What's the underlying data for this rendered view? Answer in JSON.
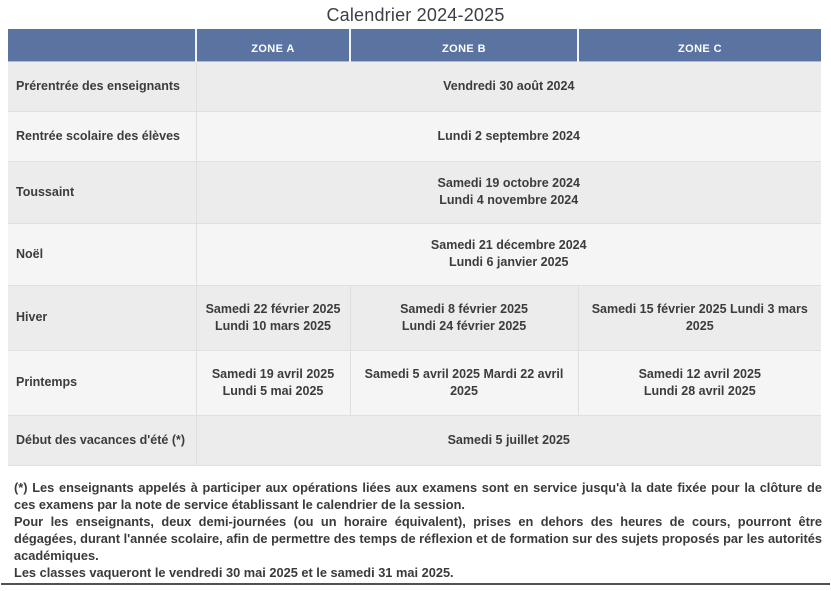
{
  "title": "Calendrier 2024-2025",
  "colors": {
    "header_bg": "#5a73a1",
    "row_dark": "#ececec",
    "row_light": "#f5f5f5",
    "divider": "#515151"
  },
  "table": {
    "header": {
      "zone_a": "ZONE A",
      "zone_b": "ZONE B",
      "zone_c": "ZONE C"
    },
    "rows": [
      {
        "label": "Prérentrée des enseignants",
        "cells": [
          {
            "span": "all-zones",
            "lines": [
              "Vendredi 30 août 2024"
            ]
          }
        ]
      },
      {
        "label": "Rentrée scolaire des élèves",
        "cells": [
          {
            "span": "all-zones",
            "lines": [
              "Lundi 2 septembre 2024"
            ]
          }
        ]
      },
      {
        "label": "Toussaint",
        "cells": [
          {
            "span": "all-zones",
            "lines": [
              "Samedi 19 octobre 2024",
              "Lundi 4 novembre 2024"
            ]
          }
        ]
      },
      {
        "label": "Noël",
        "cells": [
          {
            "span": "all-zones",
            "lines": [
              "Samedi 21 décembre 2024",
              "Lundi 6 janvier 2025"
            ]
          }
        ]
      },
      {
        "label": "Hiver",
        "cells": [
          {
            "span": "zone-a",
            "lines": [
              "Samedi 22 février 2025",
              "Lundi 10 mars 2025"
            ]
          },
          {
            "span": "zone-b",
            "lines": [
              "Samedi 8 février 2025",
              "Lundi 24 février 2025"
            ]
          },
          {
            "span": "zone-c",
            "lines": [
              "Samedi 15 février 2025 Lundi 3 mars 2025"
            ]
          }
        ]
      },
      {
        "label": "Printemps",
        "cells": [
          {
            "span": "zone-a",
            "lines": [
              "Samedi 19 avril 2025",
              "Lundi 5 mai 2025"
            ]
          },
          {
            "span": "zone-b",
            "lines": [
              "Samedi 5 avril 2025 Mardi 22 avril 2025"
            ]
          },
          {
            "span": "zone-c",
            "lines": [
              "Samedi 12 avril 2025",
              "Lundi 28 avril 2025"
            ]
          }
        ]
      },
      {
        "label": "Début des vacances d'été (*)",
        "cells": [
          {
            "span": "all-zones",
            "lines": [
              "Samedi 5 juillet 2025"
            ]
          }
        ]
      }
    ]
  },
  "footnotes": [
    "(*) Les enseignants appelés à participer aux opérations liées aux examens sont en service jusqu'à la date fixée pour la clôture de ces examens par la note de service établissant le calendrier de la session.",
    "Pour les enseignants, deux demi-journées (ou un horaire équivalent), prises en dehors des heures de cours, pourront être dégagées, durant l'année scolaire, afin de permettre des temps de réflexion et de formation sur des sujets proposés par les autorités académiques.",
    "Les classes vaqueront le vendredi 30 mai 2025 et le samedi 31 mai 2025."
  ]
}
